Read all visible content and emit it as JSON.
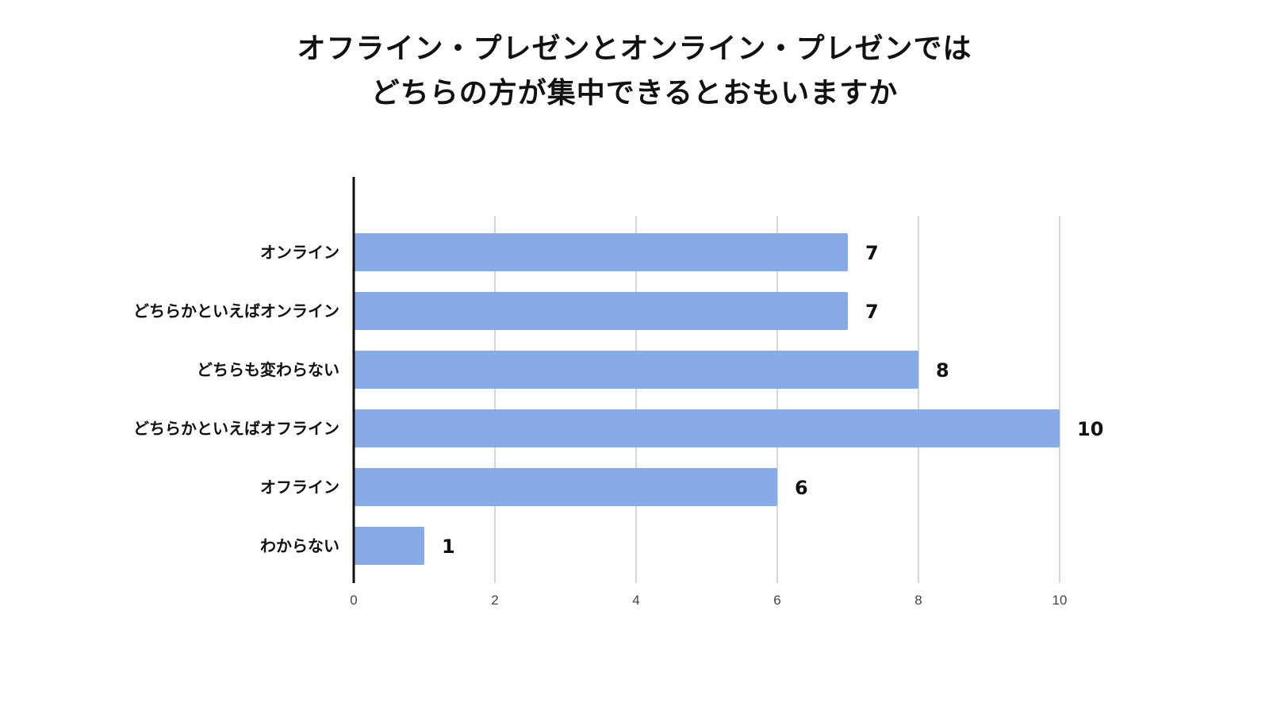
{
  "chart_data": {
    "type": "bar",
    "orientation": "horizontal",
    "title_lines": [
      "オフライン・プレゼンとオンライン・プレゼンでは",
      "どちらの方が集中できるとおもいますか"
    ],
    "categories": [
      "オンライン",
      "どちらかといえばオンライン",
      "どちらも変わらない",
      "どちらかといえばオフライン",
      "オフライン",
      "わからない"
    ],
    "values": [
      7,
      7,
      8,
      10,
      6,
      1
    ],
    "xlim": [
      0,
      10
    ],
    "xticks": [
      "0",
      "2",
      "4",
      "6",
      "8",
      "10"
    ],
    "grid": true,
    "bar_color": "#86abe6",
    "gridline_color": "#cccccc",
    "axis_color": "#111111"
  }
}
